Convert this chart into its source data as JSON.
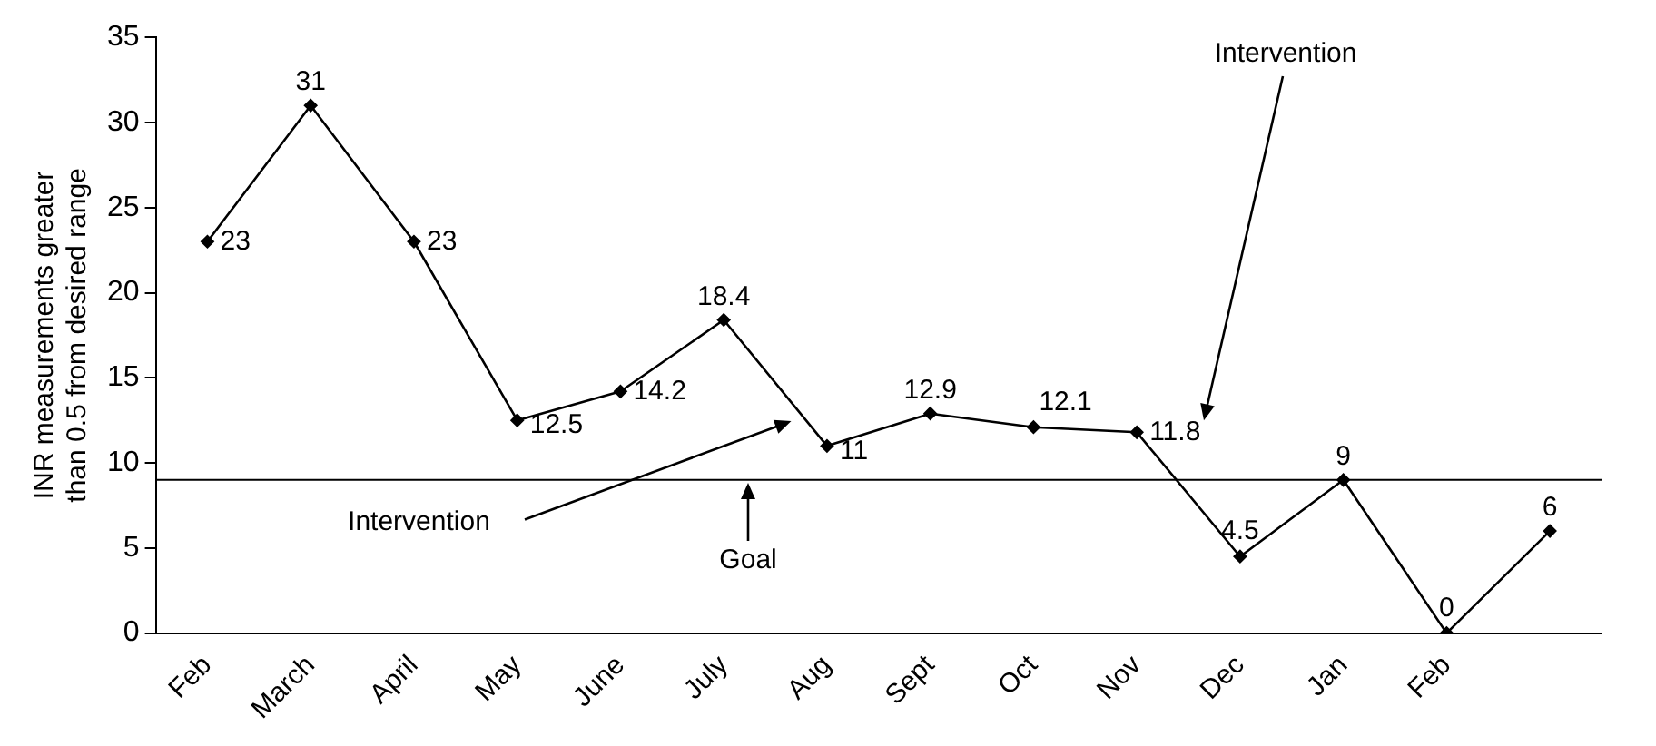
{
  "chart_data": {
    "type": "line",
    "ylabel": "INR measurements greater than 0.5 from desired range",
    "categories": [
      "Feb",
      "March",
      "April",
      "May",
      "June",
      "July",
      "Aug",
      "Sept",
      "Oct",
      "Nov",
      "Dec",
      "Jan",
      "Feb",
      null
    ],
    "series": [
      {
        "color": "#000000",
        "values": [
          23,
          31,
          23,
          12.5,
          14.2,
          18.4,
          11,
          12.9,
          12.1,
          11.8,
          4.5,
          9,
          0,
          6
        ]
      }
    ],
    "ylim": [
      0,
      35
    ],
    "yticks": [
      0,
      5,
      10,
      15,
      20,
      25,
      30,
      35
    ],
    "grid": false,
    "legend": false,
    "marker": "diamond",
    "line_style": "solid",
    "data_labels": true,
    "ref_lines": [
      {
        "axis": "y",
        "value": 9,
        "color": "#000000"
      }
    ],
    "annotations": [
      "Intervention",
      "Intervention",
      "Goal"
    ]
  }
}
